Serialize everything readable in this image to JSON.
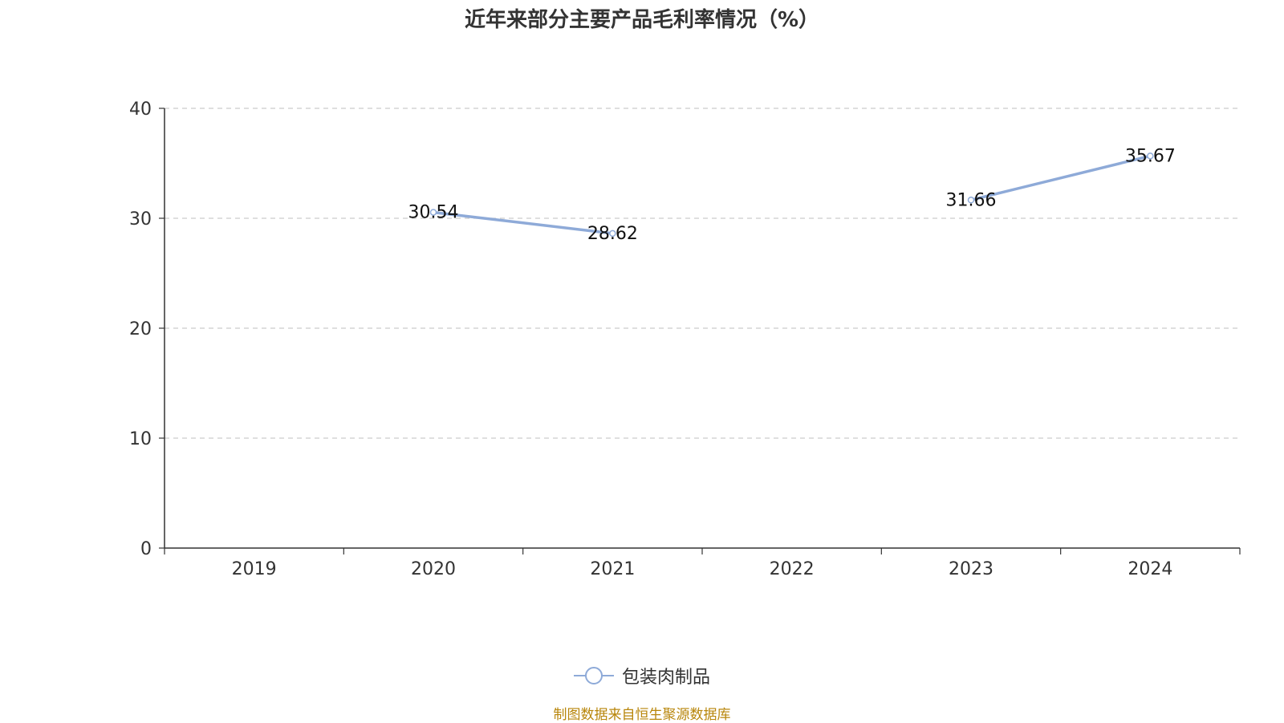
{
  "title": "近年来部分主要产品毛利率情况（%）",
  "source": "制图数据来自恒生聚源数据库",
  "colors": {
    "series": "#8eaad8",
    "axis": "#333333",
    "grid": "#cccccc",
    "source": "#b8860b"
  },
  "chart_data": {
    "type": "line",
    "title": "近年来部分主要产品毛利率情况（%）",
    "categories": [
      "2019",
      "2020",
      "2021",
      "2022",
      "2023",
      "2024"
    ],
    "series": [
      {
        "name": "包装肉制品",
        "values": [
          null,
          30.54,
          28.62,
          null,
          31.66,
          35.67
        ]
      }
    ],
    "ylim": [
      0,
      40
    ],
    "yticks": [
      0,
      10,
      20,
      30,
      40
    ],
    "xlabel": "",
    "ylabel": "",
    "grid": true,
    "legend": "bottom-center"
  }
}
